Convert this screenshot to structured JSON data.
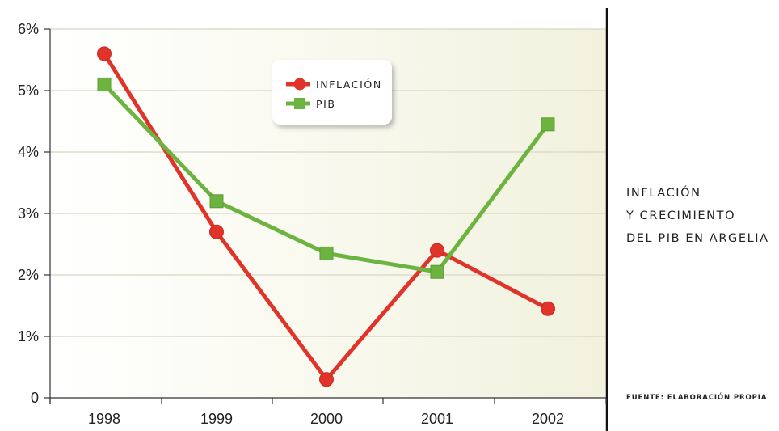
{
  "chart_data": {
    "type": "line",
    "categories": [
      "1998",
      "1999",
      "2000",
      "2001",
      "2002"
    ],
    "y_ticks": [
      "0",
      "1%",
      "2%",
      "3%",
      "4%",
      "5%",
      "6%"
    ],
    "ylim": [
      0,
      6
    ],
    "grid": true,
    "legend_position": "top-center",
    "series": [
      {
        "name": "INFLACIÓN",
        "marker": "circle",
        "color": "#e0342b",
        "values": [
          5.6,
          2.7,
          0.3,
          2.4,
          1.45
        ]
      },
      {
        "name": "PIB",
        "marker": "square",
        "color": "#6cb43f",
        "values": [
          5.1,
          3.2,
          2.35,
          2.05,
          4.45
        ]
      }
    ],
    "title_lines": [
      "INFLACIÓN",
      "Y CRECIMIENTO",
      "DEL PIB EN ARGELIA"
    ],
    "source": "FUENTE: ELABORACIÓN PROPIA"
  }
}
